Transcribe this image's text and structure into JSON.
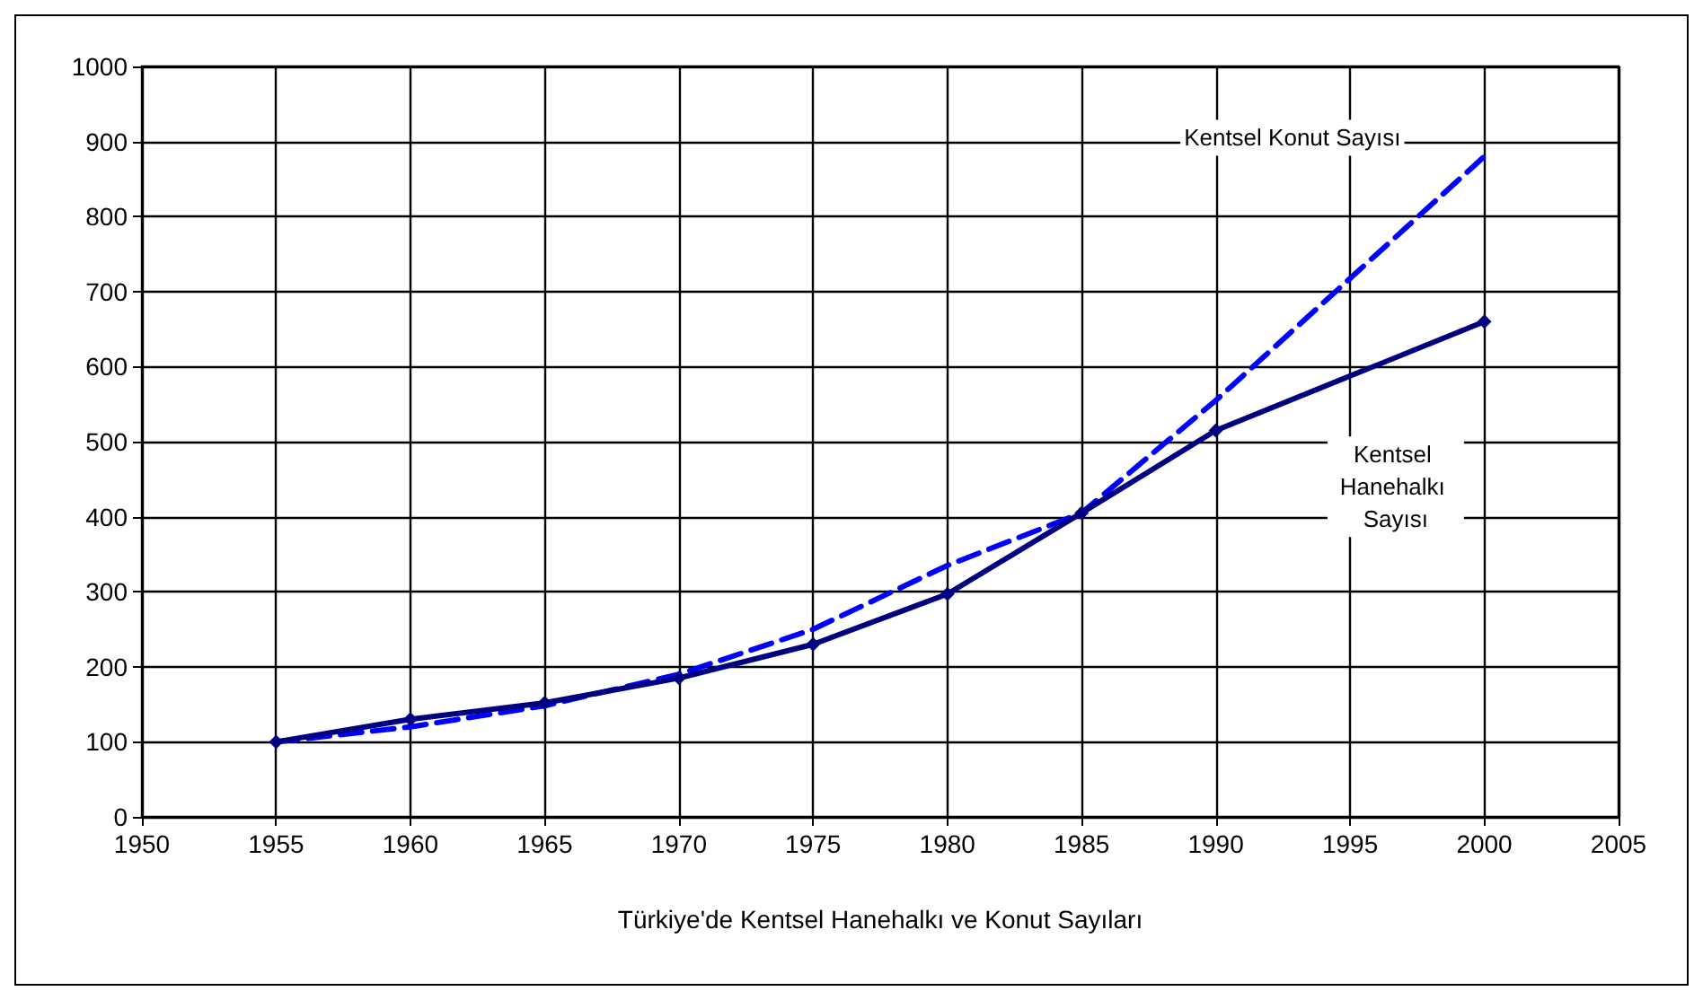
{
  "chart_data": {
    "type": "line",
    "xlabel": "Türkiye'de Kentsel Hanehalkı ve Konut Sayıları",
    "xlim": [
      1950,
      2005
    ],
    "xticks": [
      1950,
      1955,
      1960,
      1965,
      1970,
      1975,
      1980,
      1985,
      1990,
      1995,
      2000,
      2005
    ],
    "ylim": [
      0,
      1000
    ],
    "yticks": [
      0,
      100,
      200,
      300,
      400,
      500,
      600,
      700,
      800,
      900,
      1000
    ],
    "grid": true,
    "legend": false,
    "series": [
      {
        "name": "Kentsel Konut Sayısı",
        "color": "#0000ff",
        "x": [
          1955,
          1960,
          1965,
          1970,
          1975,
          1980,
          1985,
          1990,
          2000
        ],
        "values": [
          100,
          120,
          148,
          190,
          250,
          335,
          405,
          555,
          880
        ],
        "line_style": "dashed",
        "marker": "none"
      },
      {
        "name": "Kentsel Hanehalkı Sayısı",
        "color": "#000080",
        "x": [
          1955,
          1960,
          1965,
          1970,
          1975,
          1980,
          1985,
          1990,
          2000
        ],
        "values": [
          100,
          130,
          152,
          185,
          230,
          297,
          405,
          515,
          660
        ],
        "line_style": "solid",
        "marker": "diamond"
      }
    ]
  }
}
